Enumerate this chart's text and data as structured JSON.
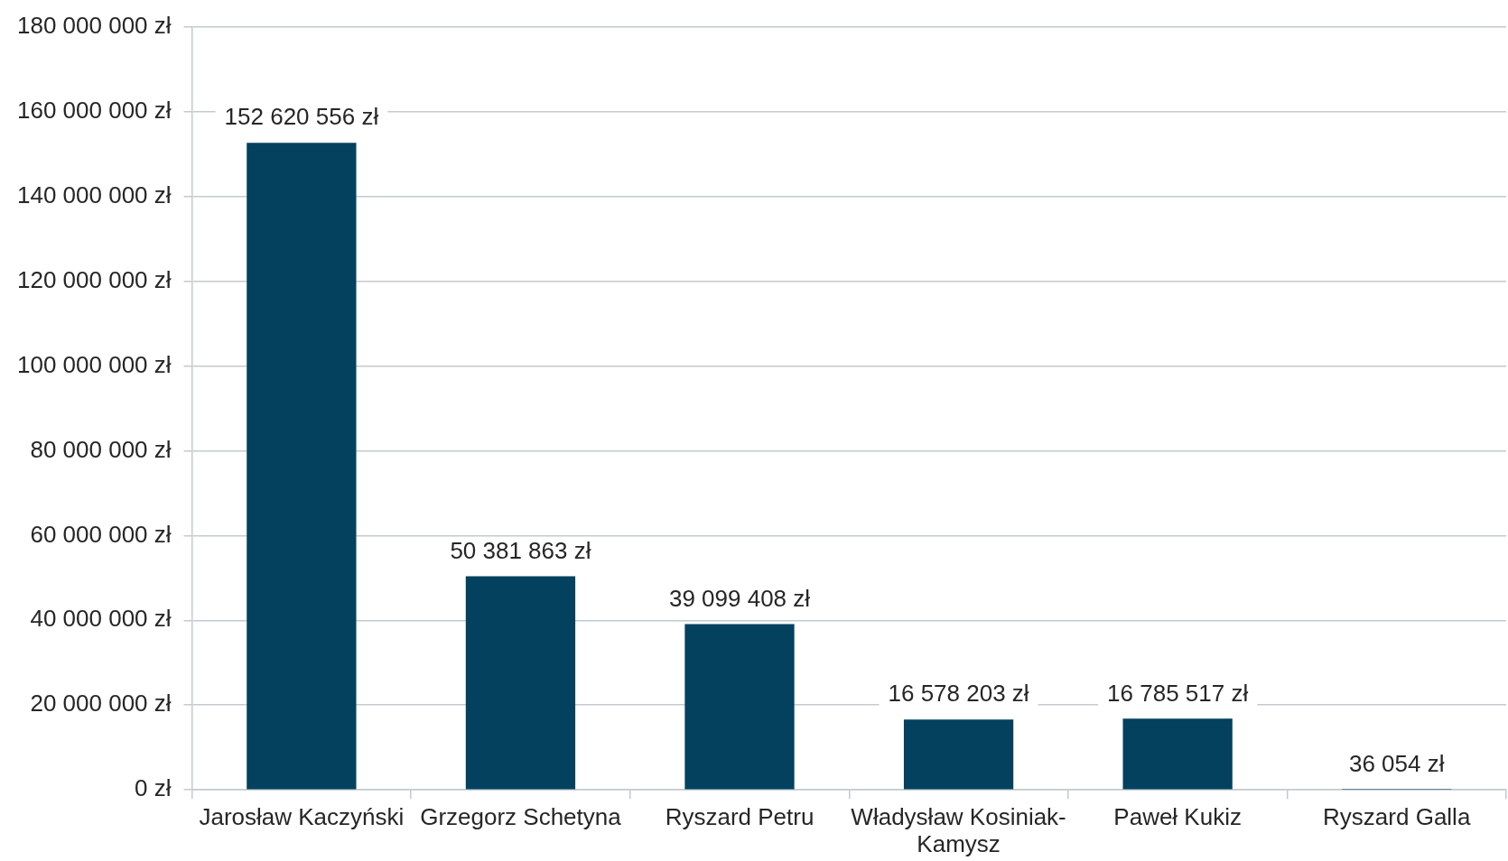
{
  "chart_data": {
    "type": "bar",
    "categories": [
      "Jarosław Kaczyński",
      "Grzegorz Schetyna",
      "Ryszard Petru",
      "Władysław Kosiniak-Kamysz",
      "Paweł Kukiz",
      "Ryszard Galla"
    ],
    "values": [
      152620556,
      50381863,
      39099408,
      16578203,
      16785517,
      36054
    ],
    "value_labels": [
      "152 620 556 zł",
      "50 381 863 zł",
      "39 099 408 zł",
      "16 578 203 zł",
      "16 785 517 zł",
      "36 054 zł"
    ],
    "color": "#03415f",
    "ylim": [
      0,
      180000000
    ],
    "yticks": [
      {
        "value": 0,
        "label": "0 zł"
      },
      {
        "value": 20000000,
        "label": "20 000 000 zł"
      },
      {
        "value": 40000000,
        "label": "40 000 000 zł"
      },
      {
        "value": 60000000,
        "label": "60 000 000 zł"
      },
      {
        "value": 80000000,
        "label": "80 000 000 zł"
      },
      {
        "value": 100000000,
        "label": "100 000 000 zł"
      },
      {
        "value": 120000000,
        "label": "120 000 000 zł"
      },
      {
        "value": 140000000,
        "label": "140 000 000 zł"
      },
      {
        "value": 160000000,
        "label": "160 000 000 zł"
      },
      {
        "value": 180000000,
        "label": "180 000 000 zł"
      }
    ],
    "grid": "y"
  }
}
